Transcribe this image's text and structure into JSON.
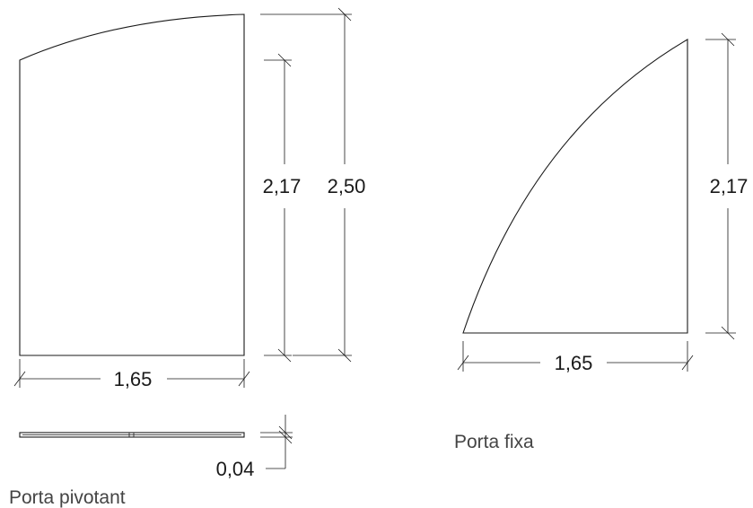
{
  "drawings": {
    "pivot": {
      "caption": "Porta pivotant",
      "width_label": "1,65",
      "height_inner_label": "2,17",
      "height_total_label": "2,50",
      "thickness_label": "0,04"
    },
    "fixed": {
      "caption": "Porta fixa",
      "width_label": "1,65",
      "height_label": "2,17"
    }
  }
}
